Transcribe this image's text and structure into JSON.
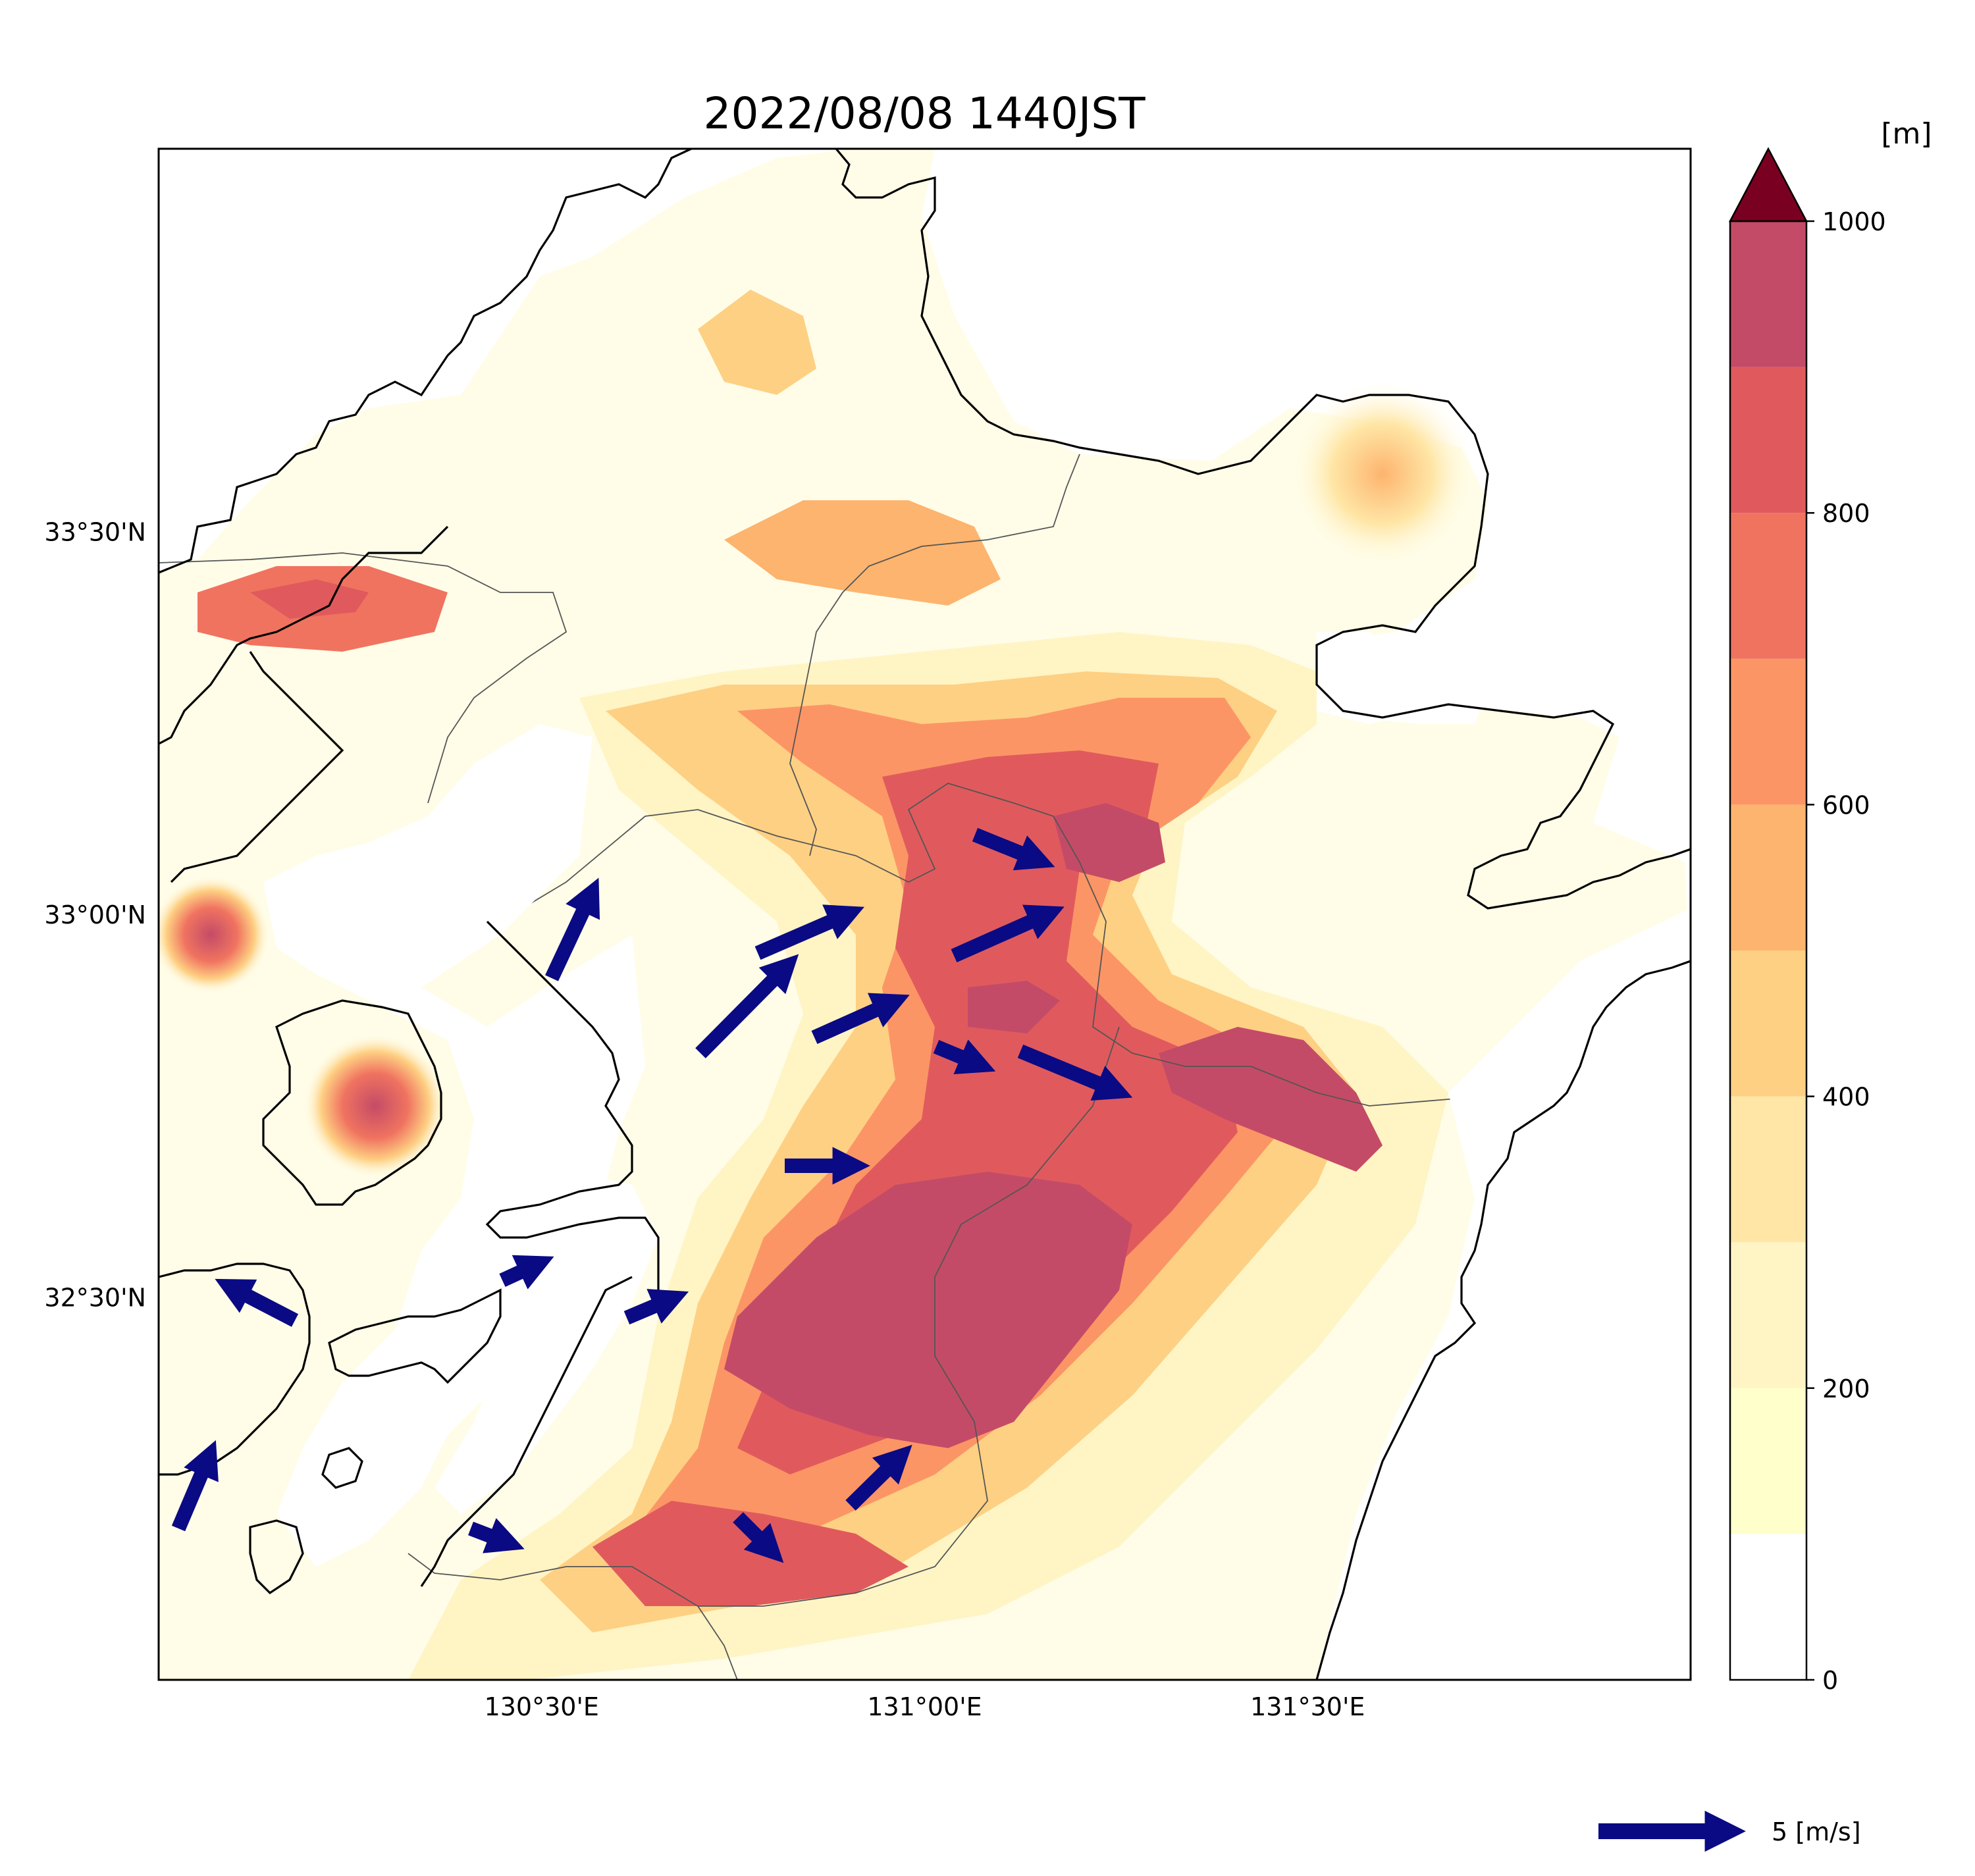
{
  "title": "2022/08/08 1440JST",
  "map": {
    "lon_ticks": [
      {
        "value": 130.5,
        "label": "130°30'E"
      },
      {
        "value": 131.0,
        "label": "131°00'E"
      },
      {
        "value": 131.5,
        "label": "131°30'E"
      }
    ],
    "lat_ticks": [
      {
        "value": 33.5,
        "label": "33°30'N"
      },
      {
        "value": 33.0,
        "label": "33°00'N"
      },
      {
        "value": 32.5,
        "label": "32°30'N"
      }
    ],
    "extent": {
      "lon": [
        130.0,
        132.0
      ],
      "lat": [
        32.0,
        34.0
      ]
    }
  },
  "colorbar": {
    "unit_label": "[m]",
    "tick_labels": [
      "0",
      "200",
      "400",
      "600",
      "800",
      "1000"
    ],
    "tick_values": [
      0,
      200,
      400,
      600,
      800,
      1000
    ],
    "levels": [
      0,
      100,
      200,
      300,
      400,
      500,
      600,
      700,
      800,
      900,
      1000
    ],
    "colors": [
      "#ffffff",
      "#ffffcc",
      "#fff4c4",
      "#ffe6a6",
      "#fed083",
      "#fdb46e",
      "#fc9565",
      "#f07360",
      "#e05a5d",
      "#c44b67"
    ],
    "extend_color": "#7a0022"
  },
  "wind": {
    "color": "#0a0a84",
    "reference_label": "5 [m/s]",
    "reference_speed": 5
  },
  "colors": {
    "coastline": "#000000",
    "boundaries": "#555555"
  }
}
